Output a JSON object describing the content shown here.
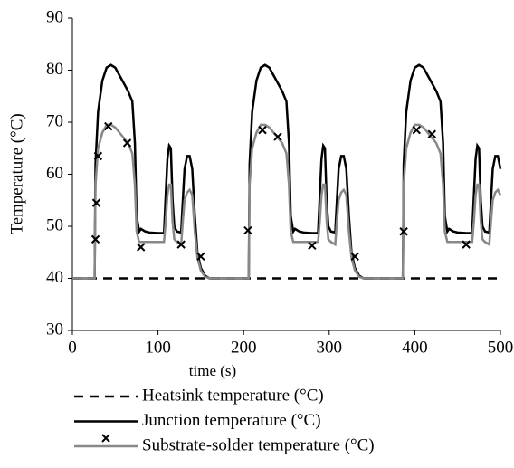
{
  "chart_data": {
    "type": "line",
    "xlabel": "time (s)",
    "ylabel": "Temperature (°C)",
    "xlim": [
      0,
      500
    ],
    "xticks": [
      0,
      100,
      200,
      300,
      400,
      500
    ],
    "ylim": [
      30,
      90
    ],
    "yticks": [
      30,
      40,
      50,
      60,
      70,
      80,
      90
    ],
    "series": [
      {
        "name": "Heatsink temperature (°C)",
        "color": "#000000",
        "dash": "10,7",
        "x": [
          0,
          500
        ],
        "values": [
          40,
          40
        ]
      },
      {
        "name": "Junction temperature (°C)",
        "color": "#000000",
        "x": [
          0,
          26,
          27,
          30,
          35,
          40,
          45,
          50,
          55,
          60,
          65,
          70,
          73,
          75,
          78,
          80,
          85,
          90,
          100,
          107,
          109,
          111,
          113,
          115,
          117,
          119,
          122,
          127,
          129,
          131,
          134,
          137,
          140,
          143,
          146,
          150,
          155,
          160,
          180,
          206,
          207,
          210,
          215,
          220,
          225,
          230,
          235,
          240,
          245,
          250,
          253,
          255,
          258,
          260,
          265,
          270,
          280,
          287,
          289,
          291,
          293,
          295,
          297,
          299,
          302,
          307,
          309,
          311,
          314,
          317,
          320,
          323,
          326,
          330,
          335,
          340,
          360,
          386,
          387,
          390,
          395,
          400,
          405,
          410,
          415,
          420,
          425,
          430,
          433,
          435,
          438,
          440,
          445,
          450,
          460,
          467,
          469,
          471,
          473,
          475,
          477,
          479,
          482,
          487,
          489,
          491,
          494,
          497,
          500
        ],
        "values": [
          40,
          40,
          62,
          72,
          78,
          80.5,
          81,
          80.5,
          79,
          77.5,
          76,
          74,
          66,
          52,
          49,
          49.5,
          49,
          48.8,
          48.7,
          48.7,
          56,
          63,
          65.5,
          65,
          55,
          50,
          49,
          48.8,
          55,
          61,
          63.5,
          63.5,
          61,
          52,
          45,
          42,
          40.5,
          40,
          40,
          40,
          62,
          72,
          78,
          80.5,
          81,
          80.5,
          79,
          77.5,
          76,
          74,
          66,
          52,
          49,
          49.5,
          49,
          48.8,
          48.7,
          48.7,
          56,
          63,
          65.5,
          65,
          55,
          50,
          49,
          48.8,
          55,
          61,
          63.5,
          63.5,
          61,
          52,
          45,
          42,
          40.5,
          40,
          40,
          40,
          62,
          72,
          78,
          80.5,
          81,
          80.5,
          79,
          77.5,
          76,
          74,
          66,
          52,
          49,
          49.5,
          49,
          48.8,
          48.7,
          48.7,
          56,
          63,
          65.5,
          65,
          55,
          50,
          49,
          48.8,
          55,
          61,
          63.5,
          63.5,
          61
        ]
      },
      {
        "name": "Substrate-solder temperature (°C)",
        "color": "#888888",
        "x": [
          0,
          26,
          27,
          30,
          35,
          40,
          45,
          50,
          55,
          60,
          65,
          70,
          73,
          75,
          78,
          80,
          85,
          90,
          100,
          107,
          109,
          111,
          113,
          115,
          117,
          119,
          122,
          127,
          129,
          131,
          134,
          137,
          140,
          143,
          146,
          150,
          155,
          160,
          180,
          206,
          207,
          210,
          215,
          220,
          225,
          230,
          235,
          240,
          245,
          250,
          253,
          255,
          258,
          260,
          265,
          270,
          280,
          287,
          289,
          291,
          293,
          295,
          297,
          299,
          302,
          307,
          309,
          311,
          314,
          317,
          320,
          323,
          326,
          330,
          335,
          340,
          360,
          386,
          387,
          390,
          395,
          400,
          405,
          410,
          415,
          420,
          425,
          430,
          433,
          435,
          438,
          440,
          445,
          450,
          460,
          467,
          469,
          471,
          473,
          475,
          477,
          479,
          482,
          487,
          489,
          491,
          494,
          497,
          500
        ],
        "values": [
          40,
          40,
          58,
          65,
          68,
          69.5,
          69.5,
          69,
          68,
          67,
          66,
          64,
          58,
          49,
          47,
          47,
          47,
          47,
          47,
          47,
          51,
          56,
          58,
          58,
          51,
          47.5,
          47,
          46.5,
          51,
          55,
          56.5,
          57,
          56,
          49,
          44,
          41.5,
          40.3,
          40,
          40,
          40,
          58,
          65,
          68,
          69.5,
          69.5,
          69,
          68,
          67,
          66,
          64,
          58,
          49,
          47,
          47,
          47,
          47,
          47,
          47,
          51,
          56,
          58,
          58,
          51,
          47.5,
          47,
          46.5,
          51,
          55,
          56.5,
          57,
          56,
          49,
          44,
          41.5,
          40.3,
          40,
          40,
          40,
          58,
          65,
          68,
          69.5,
          69.5,
          69,
          68,
          67,
          66,
          64,
          58,
          49,
          47,
          47,
          47,
          47,
          47,
          47,
          51,
          56,
          58,
          58,
          51,
          47.5,
          47,
          46.5,
          51,
          55,
          56.5,
          57,
          56
        ],
        "marker_color": "#000000",
        "marker_x": [
          27,
          28,
          30,
          42,
          64,
          80,
          127,
          150,
          205,
          222,
          240,
          280,
          330,
          387,
          402,
          420,
          460
        ],
        "marker_values": [
          47.5,
          54.5,
          63.5,
          69.2,
          66,
          46,
          46.5,
          44.2,
          49.2,
          68.5,
          67.2,
          46.3,
          44.2,
          49,
          68.5,
          67.7,
          46.5
        ]
      }
    ]
  }
}
